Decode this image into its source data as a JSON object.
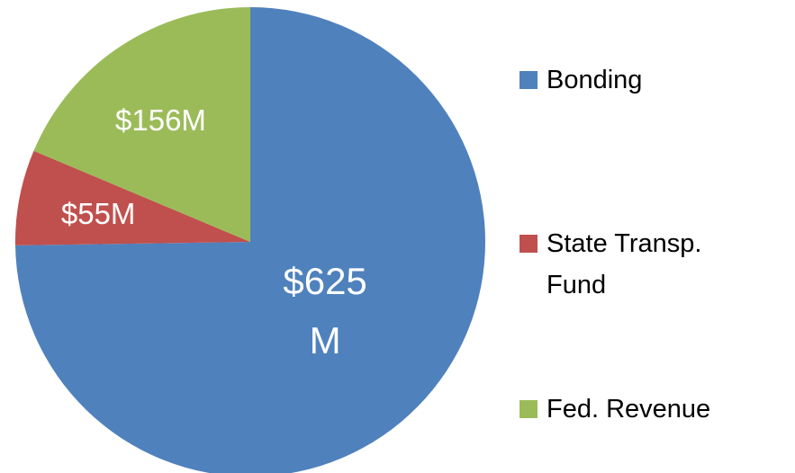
{
  "chart_data": {
    "type": "pie",
    "categories": [
      "Bonding",
      "State Transp. Fund",
      "Fed. Revenue"
    ],
    "values": [
      625,
      55,
      156
    ],
    "value_labels": [
      "$625M",
      "$55M",
      "$156M"
    ],
    "colors": [
      "#4f81bd",
      "#c0504d",
      "#9bbb59"
    ],
    "legend": "right"
  }
}
